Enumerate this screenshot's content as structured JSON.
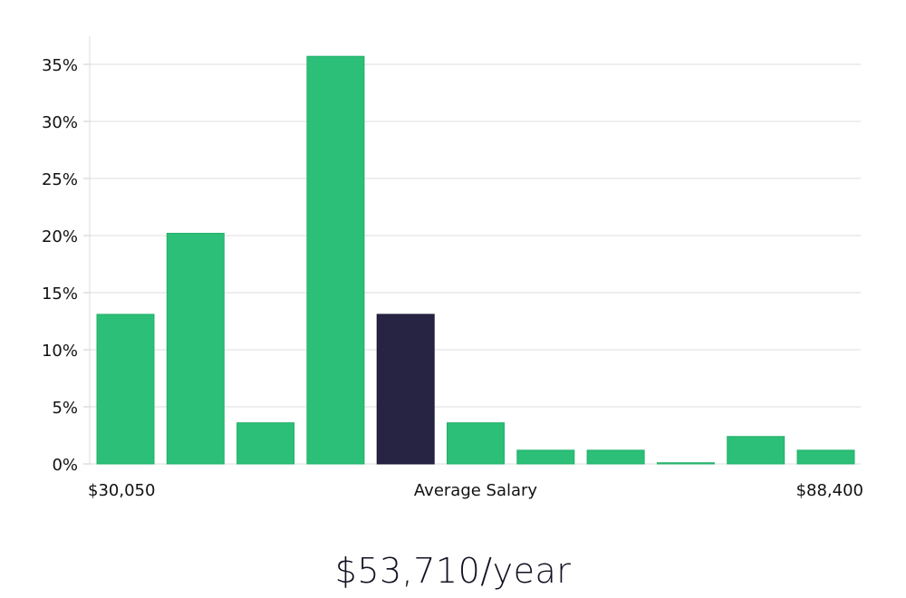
{
  "chart_data": {
    "type": "bar",
    "title": "",
    "xlabel": "Average Salary",
    "ylabel": "",
    "x_min_label": "$30,050",
    "x_max_label": "$88,400",
    "ylim": [
      0,
      37
    ],
    "y_ticks": [
      0,
      5,
      10,
      15,
      20,
      25,
      30,
      35
    ],
    "y_tick_labels": [
      "0%",
      "5%",
      "10%",
      "15%",
      "20%",
      "25%",
      "30%",
      "35%"
    ],
    "values": [
      13.1,
      20.2,
      3.6,
      35.7,
      13.1,
      3.6,
      1.2,
      1.2,
      0.1,
      2.4,
      1.2
    ],
    "highlight_index": 4,
    "bar_color": "#2bbf77",
    "highlight_color": "#272342",
    "grid": true
  },
  "summary": {
    "average_salary": "$53,710/year"
  }
}
